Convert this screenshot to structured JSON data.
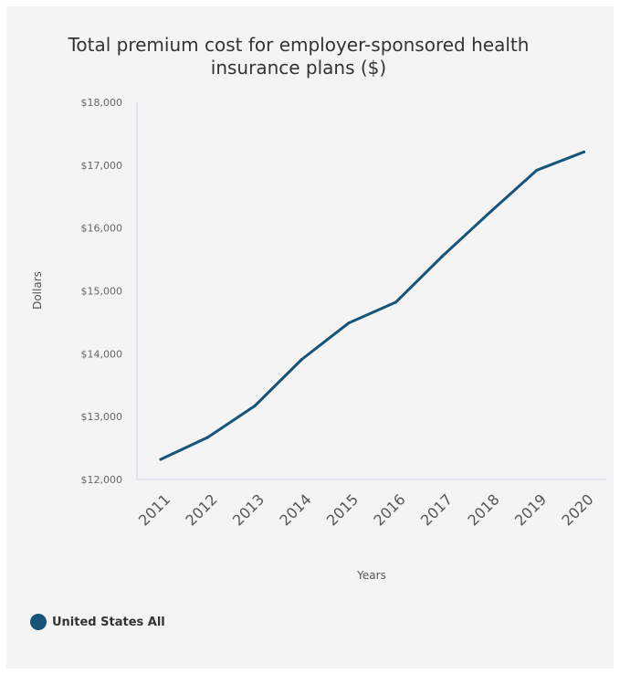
{
  "chart_data": {
    "type": "line",
    "title": "Total premium cost for employer-sponsored health insurance plans ($)",
    "xlabel": "Years",
    "ylabel": "Dollars",
    "x": [
      "2011",
      "2012",
      "2013",
      "2014",
      "2015",
      "2016",
      "2017",
      "2018",
      "2019",
      "2020"
    ],
    "ylim": [
      12000,
      18000
    ],
    "yticks": [
      12000,
      13000,
      14000,
      15000,
      16000,
      17000,
      18000
    ],
    "ytick_labels": [
      "$12,000",
      "$13,000",
      "$14,000",
      "$15,000",
      "$16,000",
      "$17,000",
      "$18,000"
    ],
    "series": [
      {
        "name": "United States All",
        "color": "#16547a",
        "values": [
          12320,
          12670,
          13170,
          13910,
          14490,
          14820,
          15560,
          16250,
          16920,
          17210
        ]
      }
    ],
    "legend_position": "bottom-left",
    "grid": false
  }
}
